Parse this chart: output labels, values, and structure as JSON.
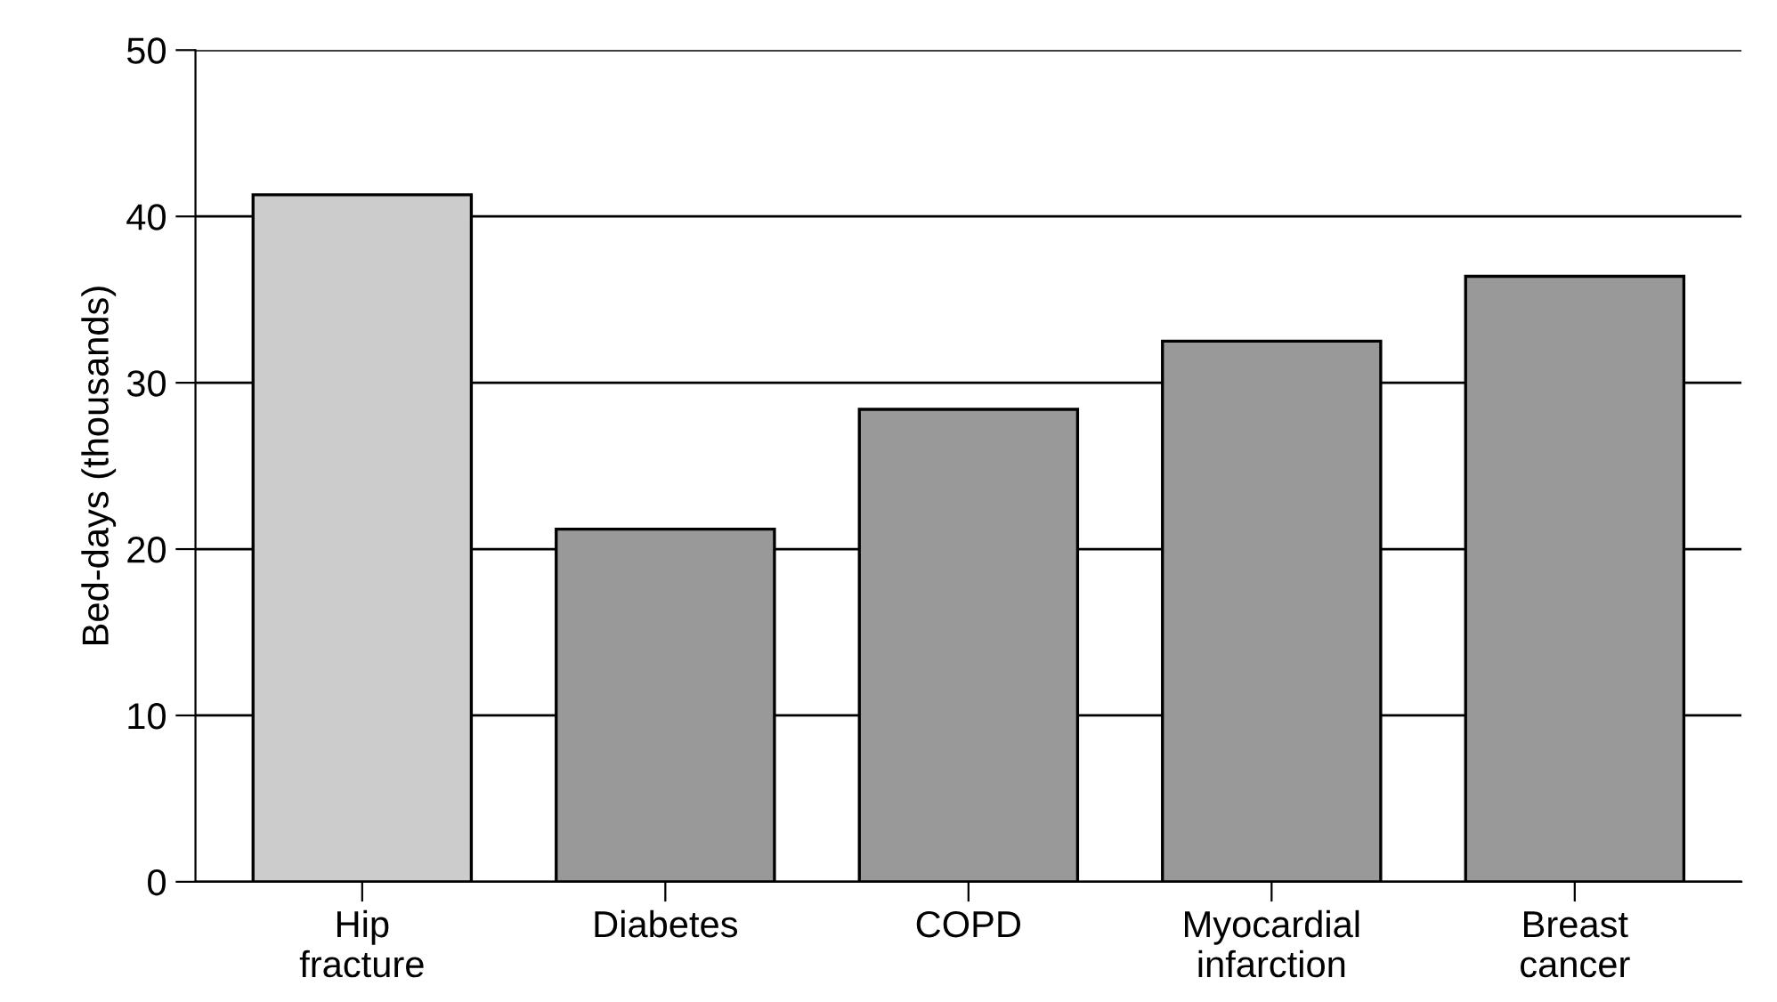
{
  "chart_data": {
    "type": "bar",
    "ylabel": "Bed-days (thousands)",
    "categories": [
      "Hip\nfracture",
      "Diabetes",
      "COPD",
      "Myocardial\ninfarction",
      "Breast\ncancer"
    ],
    "values": [
      41.3,
      21.2,
      28.4,
      32.5,
      36.4
    ],
    "colors": [
      "#cccccc",
      "#999999",
      "#999999",
      "#999999",
      "#999999"
    ],
    "ylim": [
      0,
      50
    ],
    "yticks": [
      0,
      10,
      20,
      30,
      40,
      50
    ],
    "grid": "y"
  }
}
